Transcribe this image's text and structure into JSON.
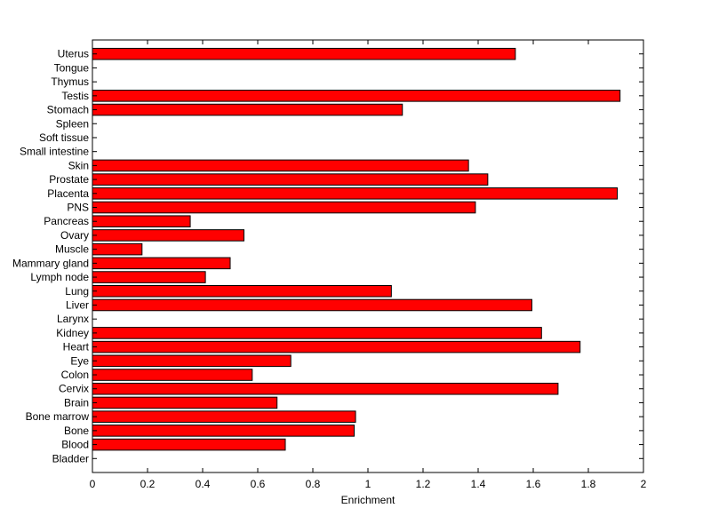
{
  "chart_data": {
    "type": "bar",
    "orientation": "horizontal",
    "title": "",
    "xlabel": "Enrichment",
    "ylabel": "",
    "xlim": [
      0,
      2
    ],
    "x_ticks": [
      "0",
      "0.2",
      "0.4",
      "0.6",
      "0.8",
      "1",
      "1.2",
      "1.4",
      "1.6",
      "1.8",
      "2"
    ],
    "grid": false,
    "bar_color": "#ff0000",
    "bar_edge_color": "#000000",
    "categories": [
      "Bladder",
      "Blood",
      "Bone",
      "Bone marrow",
      "Brain",
      "Cervix",
      "Colon",
      "Eye",
      "Heart",
      "Kidney",
      "Larynx",
      "Liver",
      "Lung",
      "Lymph node",
      "Mammary gland",
      "Muscle",
      "Ovary",
      "Pancreas",
      "PNS",
      "Placenta",
      "Prostate",
      "Skin",
      "Small intestine",
      "Soft tissue",
      "Spleen",
      "Stomach",
      "Testis",
      "Thymus",
      "Tongue",
      "Uterus"
    ],
    "values": [
      0,
      0.7,
      0.95,
      0.955,
      0.67,
      1.69,
      0.58,
      0.72,
      1.77,
      1.63,
      0,
      1.595,
      1.085,
      0.41,
      0.5,
      0.18,
      0.55,
      0.355,
      1.39,
      1.905,
      1.435,
      1.365,
      0,
      0,
      0,
      1.125,
      1.915,
      0,
      0,
      1.535
    ]
  }
}
